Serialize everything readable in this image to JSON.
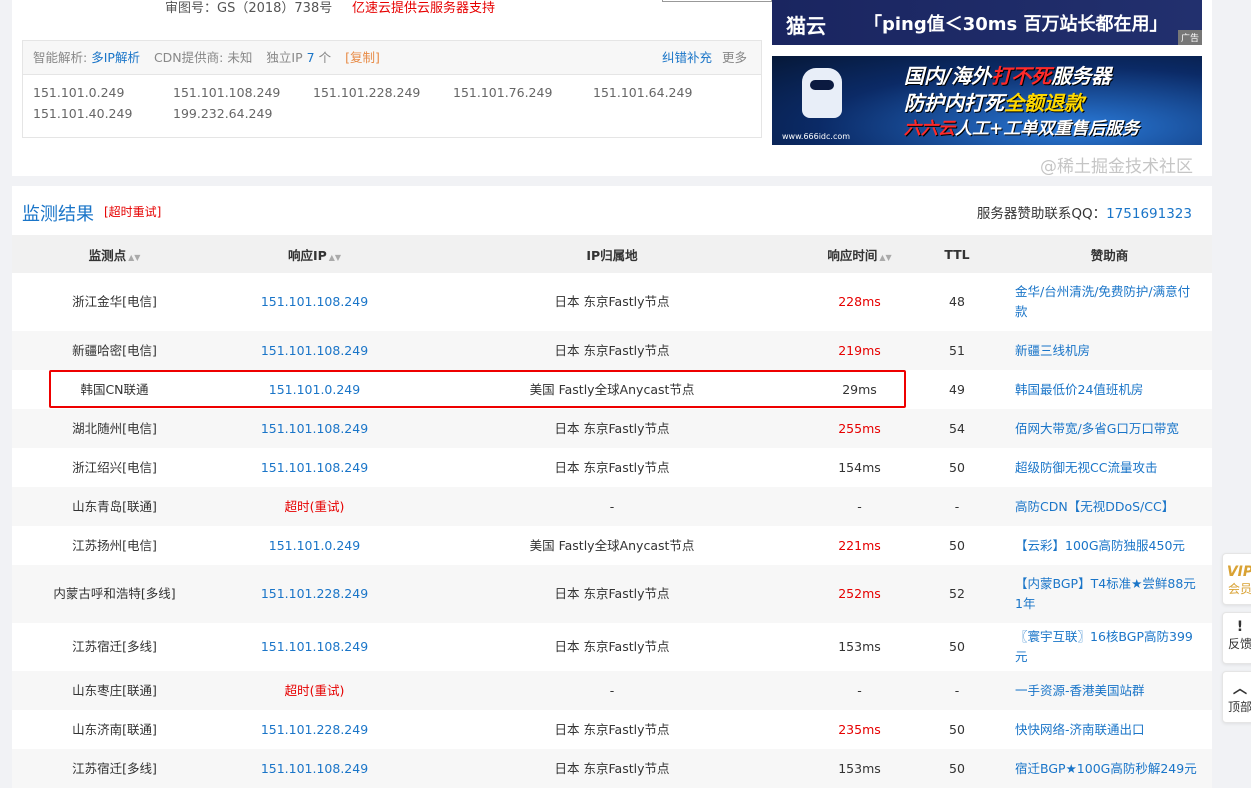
{
  "top": {
    "approval": "审图号：GS（2018）738号",
    "support": "亿速云提供云服务器支持"
  },
  "ipbox": {
    "smart_label": "智能解析:",
    "smart_value": "多IP解析",
    "cdn_label": "CDN提供商:",
    "cdn_value": "未知",
    "unique_label": "独立IP",
    "unique_count": "7",
    "unique_unit": "个",
    "copy": "[复制]",
    "correct": "纠错补充",
    "more": "更多",
    "ips": [
      "151.101.0.249",
      "151.101.108.249",
      "151.101.228.249",
      "151.101.76.249",
      "151.101.64.249",
      "151.101.40.249",
      "199.232.64.249"
    ]
  },
  "ads": {
    "banner1_logo": "猫云",
    "banner1_slogan": "「ping值＜30ms 百万站长都在用」",
    "ad_tag": "广告",
    "banner2_line1a": "国内/海外",
    "banner2_line1b": "打不死",
    "banner2_line1c": "服务器",
    "banner2_line2a": "防护内打死",
    "banner2_line2b": "全额退款",
    "banner2_line3a": "六六云",
    "banner2_line3b": "人工+工单双重售后服务",
    "banner2_url": "www.666idc.com"
  },
  "results": {
    "title": "监测结果",
    "retry": "[超时重试]",
    "qq_label": "服务器赞助联系QQ：",
    "qq": "1751691323",
    "headers": [
      "监测点",
      "响应IP",
      "IP归属地",
      "响应时间",
      "TTL",
      "赞助商"
    ],
    "rows": [
      {
        "node": "浙江金华[电信]",
        "ip": "151.101.108.249",
        "loc": "日本 东京Fastly节点",
        "time": "228ms",
        "ttl": "48",
        "sponsor": "金华/台州清洗/免费防护/满意付款",
        "slow": true,
        "tall": true
      },
      {
        "node": "新疆哈密[电信]",
        "ip": "151.101.108.249",
        "loc": "日本 东京Fastly节点",
        "time": "219ms",
        "ttl": "51",
        "sponsor": "新疆三线机房",
        "slow": true
      },
      {
        "node": "韩国CN联通",
        "ip": "151.101.0.249",
        "loc": "美国 Fastly全球Anycast节点",
        "time": "29ms",
        "ttl": "49",
        "sponsor": "韩国最低价24值班机房",
        "slow": false
      },
      {
        "node": "湖北随州[电信]",
        "ip": "151.101.108.249",
        "loc": "日本 东京Fastly节点",
        "time": "255ms",
        "ttl": "54",
        "sponsor": "佰网大带宽/多省G口万口带宽",
        "slow": true
      },
      {
        "node": "浙江绍兴[电信]",
        "ip": "151.101.108.249",
        "loc": "日本 东京Fastly节点",
        "time": "154ms",
        "ttl": "50",
        "sponsor": "超级防御无视CC流量攻击",
        "slow": false
      },
      {
        "node": "山东青岛[联通]",
        "ip": "",
        "timeout": "超时",
        "retry": "(重试)",
        "loc": "-",
        "time": "-",
        "ttl": "-",
        "sponsor": "高防CDN【无视DDoS/CC】",
        "slow": false
      },
      {
        "node": "江苏扬州[电信]",
        "ip": "151.101.0.249",
        "loc": "美国 Fastly全球Anycast节点",
        "time": "221ms",
        "ttl": "50",
        "sponsor": "【云彩】100G高防独服450元",
        "slow": true
      },
      {
        "node": "内蒙古呼和浩特[多线]",
        "ip": "151.101.228.249",
        "loc": "日本 东京Fastly节点",
        "time": "252ms",
        "ttl": "52",
        "sponsor": "【内蒙BGP】T4标准★尝鲜88元1年",
        "slow": true,
        "tall": true
      },
      {
        "node": "江苏宿迁[多线]",
        "ip": "151.101.108.249",
        "loc": "日本 东京Fastly节点",
        "time": "153ms",
        "ttl": "50",
        "sponsor": "〖寰宇互联〗16核BGP高防399元",
        "slow": false
      },
      {
        "node": "山东枣庄[联通]",
        "ip": "",
        "timeout": "超时",
        "retry": "(重试)",
        "loc": "-",
        "time": "-",
        "ttl": "-",
        "sponsor": "一手资源-香港美国站群",
        "slow": false
      },
      {
        "node": "山东济南[联通]",
        "ip": "151.101.228.249",
        "loc": "日本 东京Fastly节点",
        "time": "235ms",
        "ttl": "50",
        "sponsor": "快快网络-济南联通出口",
        "slow": true
      },
      {
        "node": "江苏宿迁[多线]",
        "ip": "151.101.108.249",
        "loc": "日本 东京Fastly节点",
        "time": "153ms",
        "ttl": "50",
        "sponsor": "宿迁BGP★100G高防秒解249元",
        "slow": false
      }
    ]
  },
  "float": {
    "vip": "VIP",
    "vip_label": "会员",
    "feedback_icon": "!",
    "feedback": "反馈",
    "top_icon": "︿",
    "top": "顶部"
  },
  "watermark": "@稀土掘金技术社区",
  "colors": {
    "link": "#1a75c8",
    "alert": "#e60000",
    "highlight_border": "#e00000"
  }
}
